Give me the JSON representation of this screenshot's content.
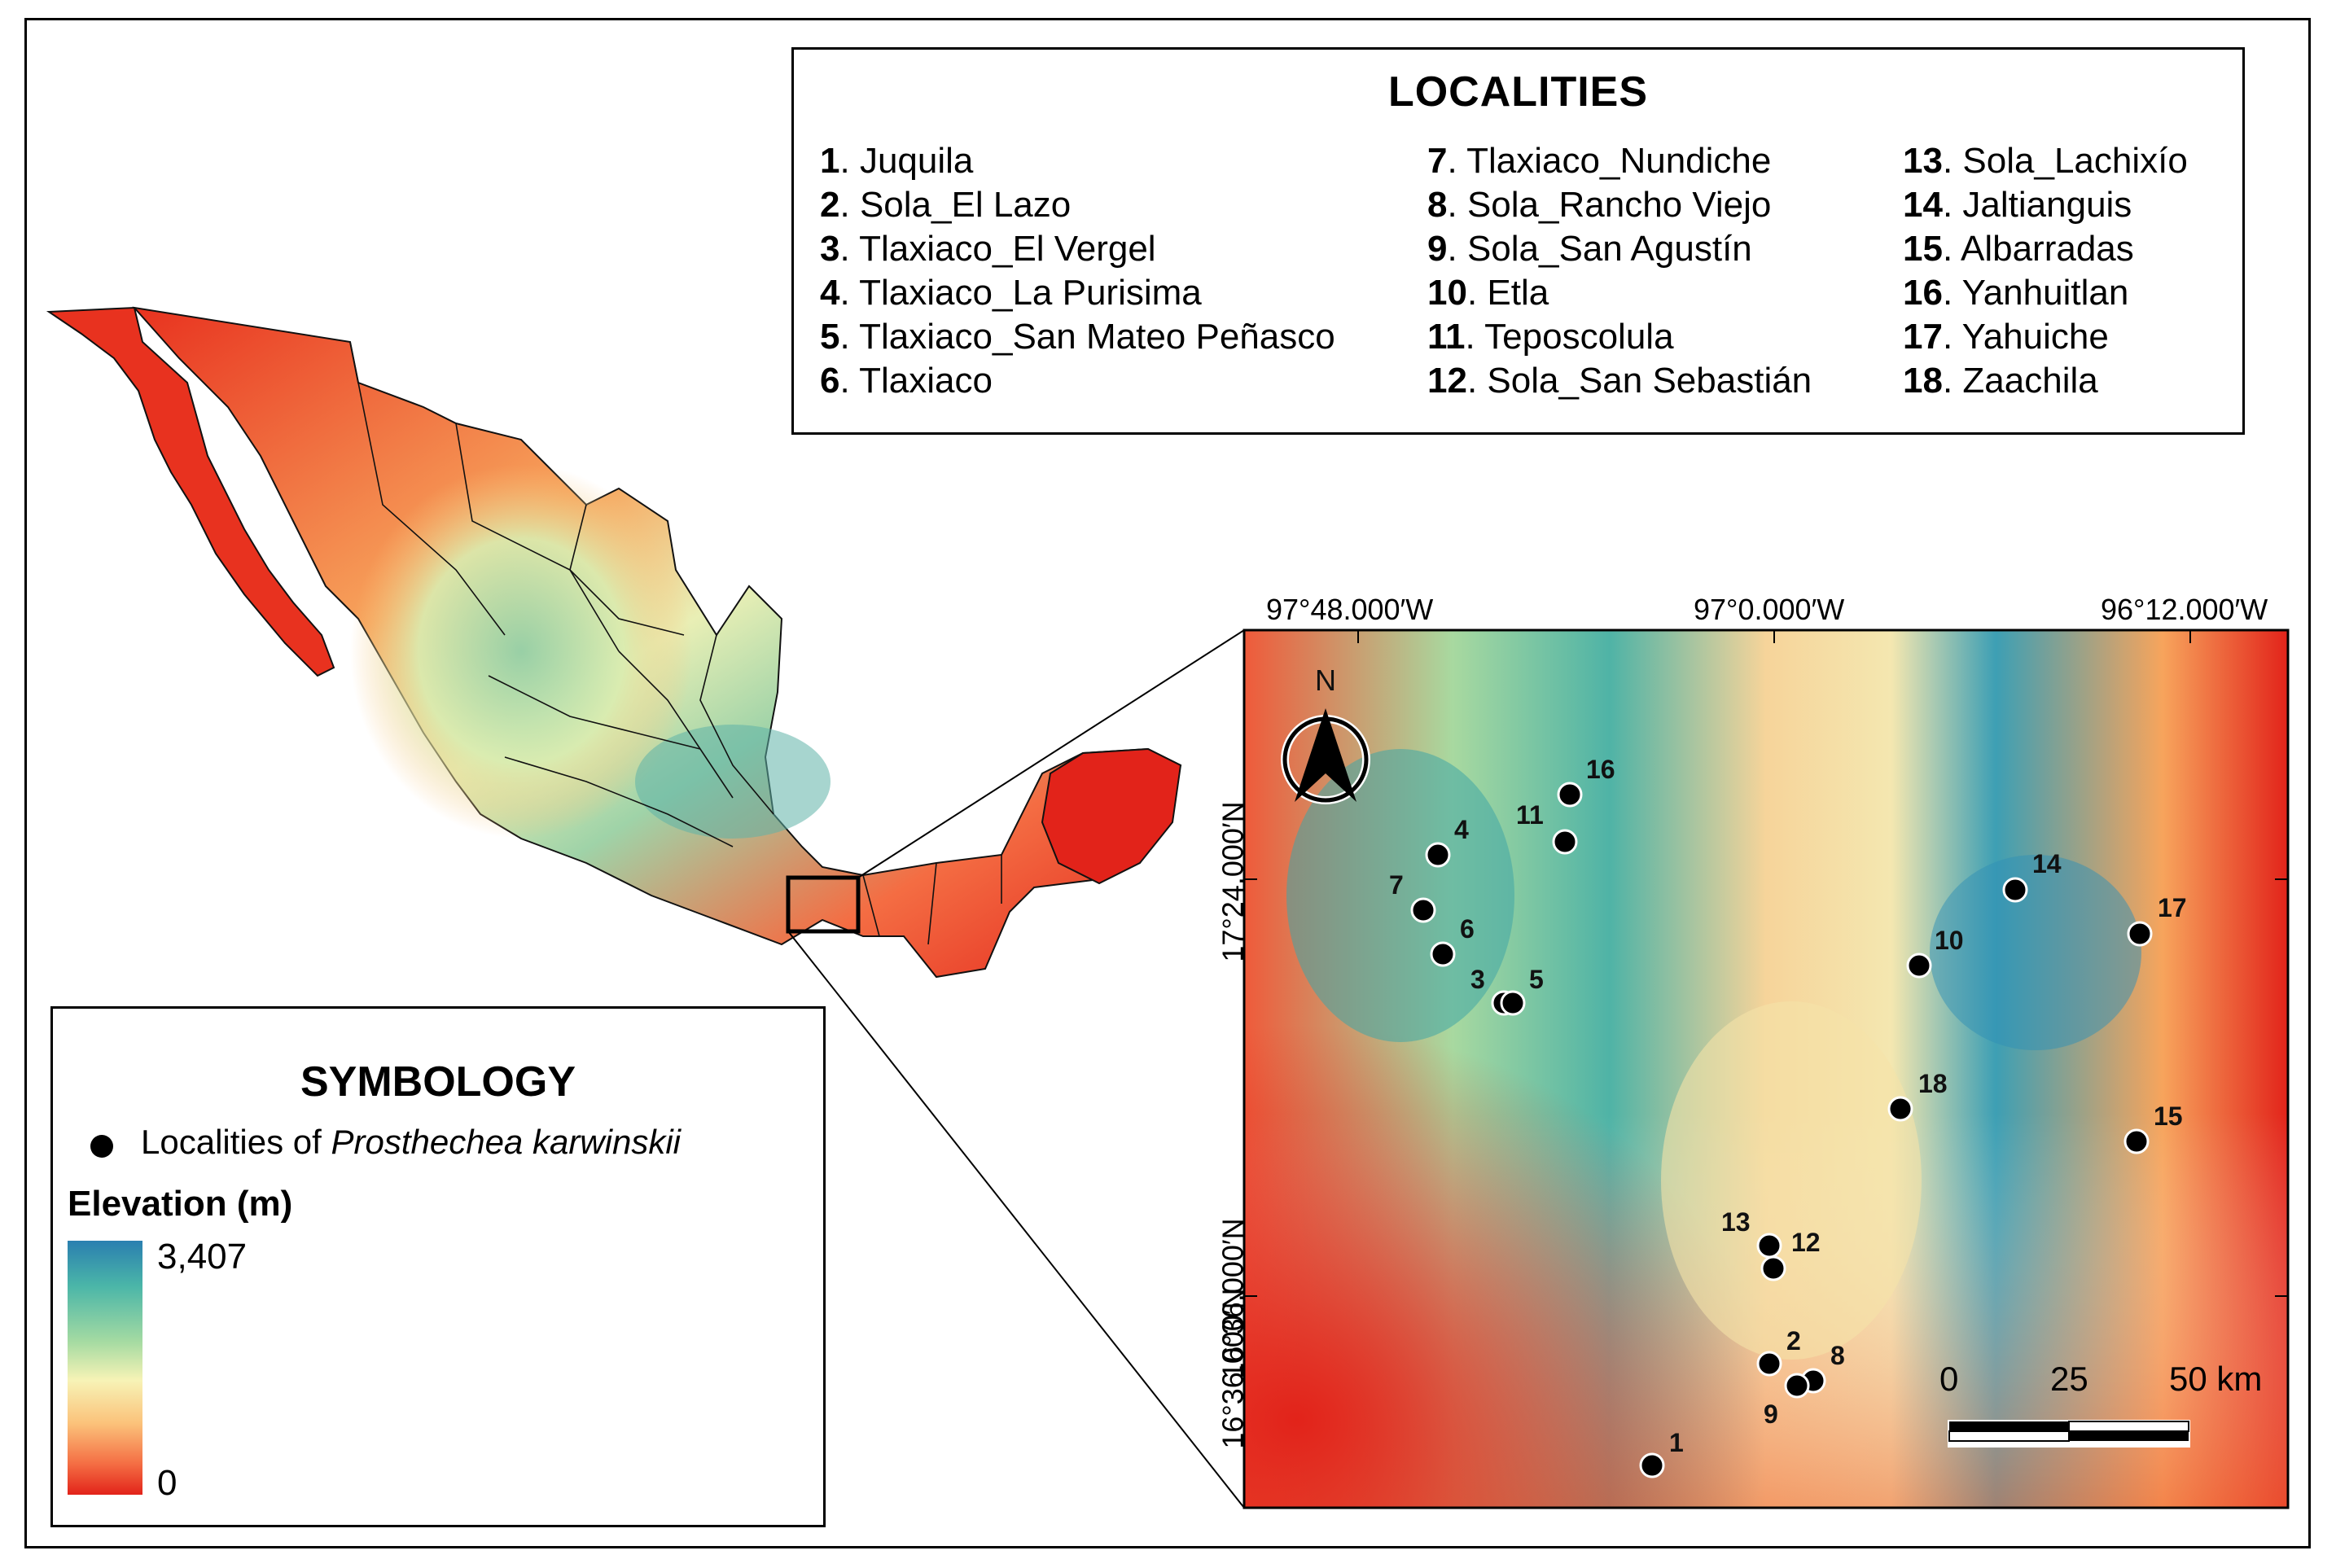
{
  "localities": {
    "title": "LOCALITIES",
    "items": [
      {
        "num": "1",
        "name": "Juquila"
      },
      {
        "num": "2",
        "name": "Sola_El Lazo"
      },
      {
        "num": "3",
        "name": "Tlaxiaco_El Vergel"
      },
      {
        "num": "4",
        "name": "Tlaxiaco_La Purisima"
      },
      {
        "num": "5",
        "name": "Tlaxiaco_San Mateo Peñasco"
      },
      {
        "num": "6",
        "name": "Tlaxiaco"
      },
      {
        "num": "7",
        "name": "Tlaxiaco_Nundiche"
      },
      {
        "num": "8",
        "name": "Sola_Rancho Viejo"
      },
      {
        "num": "9",
        "name": "Sola_San Agustín"
      },
      {
        "num": "10",
        "name": "Etla"
      },
      {
        "num": "11",
        "name": "Teposcolula"
      },
      {
        "num": "12",
        "name": "Sola_San Sebastián"
      },
      {
        "num": "13",
        "name": "Sola_Lachixío"
      },
      {
        "num": "14",
        "name": "Jaltianguis"
      },
      {
        "num": "15",
        "name": "Albarradas"
      },
      {
        "num": "16",
        "name": "Yanhuitlan"
      },
      {
        "num": "17",
        "name": "Yahuiche"
      },
      {
        "num": "18",
        "name": "Zaachila"
      }
    ]
  },
  "symbology": {
    "title": "SYMBOLOGY",
    "point_label_prefix": "Localities of ",
    "point_label_species": "Prosthechea karwinskii",
    "elevation_title": "Elevation (m)",
    "elevation_max": "3,407",
    "elevation_min": "0"
  },
  "inset": {
    "lon_labels": [
      "97°48.000′W",
      "97°0.000′W",
      "96°12.000′W"
    ],
    "lat_labels": [
      "17°24.000′N",
      "16°36.000′N",
      "16°36.000′N"
    ],
    "north_label": "N",
    "scale_labels": [
      "0",
      "25",
      "50 km"
    ]
  },
  "colors": {
    "low": "#e2231a",
    "mid": "#f7f3b6",
    "high": "#2a7fb0"
  }
}
